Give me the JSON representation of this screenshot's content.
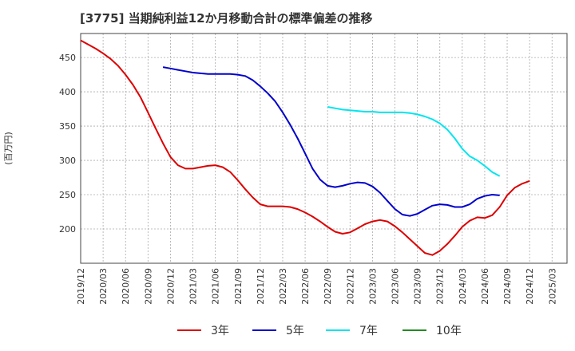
{
  "chart_data": {
    "type": "line",
    "title": "[3775]  当期純利益12か月移動合計の標準偏差の推移",
    "ylabel": "(百万円)",
    "xlabel": "",
    "ylim": [
      150,
      485
    ],
    "yticks": [
      200,
      250,
      300,
      350,
      400,
      450
    ],
    "x_tick_labels": [
      "2019/12",
      "2020/03",
      "2020/06",
      "2020/09",
      "2020/12",
      "2021/03",
      "2021/06",
      "2021/09",
      "2021/12",
      "2022/03",
      "2022/06",
      "2022/09",
      "2022/12",
      "2023/03",
      "2023/06",
      "2023/09",
      "2023/12",
      "2024/03",
      "2024/06",
      "2024/09",
      "2024/12",
      "2025/03"
    ],
    "grid": true,
    "legend_position": "bottom",
    "series": [
      {
        "name": "3年",
        "color": "#dd0000",
        "x": [
          0,
          1,
          2,
          3,
          4,
          5,
          6,
          7,
          8,
          9,
          10,
          11,
          12,
          13,
          14,
          15,
          16,
          17,
          18,
          19,
          20,
          21,
          22,
          23,
          24,
          25,
          26,
          27,
          28,
          29,
          30,
          31,
          32,
          33,
          34,
          35,
          36,
          37,
          38,
          39,
          40,
          41,
          42,
          43,
          44,
          45,
          46,
          47,
          48,
          49,
          50,
          51,
          52,
          53,
          54,
          55,
          56,
          57,
          58,
          59,
          60,
          61,
          62,
          63,
          64
        ],
        "values": [
          475,
          469,
          463,
          456,
          448,
          438,
          425,
          410,
          392,
          370,
          347,
          325,
          305,
          293,
          288,
          288,
          290,
          292,
          293,
          290,
          283,
          271,
          258,
          246,
          236,
          233,
          233,
          233,
          232,
          229,
          224,
          218,
          211,
          203,
          196,
          193,
          195,
          201,
          207,
          211,
          213,
          211,
          204,
          195,
          185,
          175,
          165,
          162,
          168,
          178,
          190,
          203,
          212,
          217,
          216,
          220,
          232,
          249,
          260,
          266,
          270,
          null,
          null,
          null,
          null
        ]
      },
      {
        "name": "5年",
        "color": "#0000cc",
        "x": [
          0,
          1,
          2,
          3,
          4,
          5,
          6,
          7,
          8,
          9,
          10,
          11,
          12,
          13,
          14,
          15,
          16,
          17,
          18,
          19,
          20,
          21,
          22,
          23,
          24,
          25,
          26,
          27,
          28,
          29,
          30,
          31,
          32,
          33,
          34,
          35,
          36,
          37,
          38,
          39,
          40,
          41,
          42,
          43,
          44,
          45,
          46,
          47,
          48,
          49,
          50,
          51,
          52,
          53,
          54,
          55,
          56,
          57,
          58,
          59,
          60,
          61,
          62,
          63,
          64
        ],
        "values": [
          null,
          null,
          null,
          null,
          null,
          null,
          null,
          null,
          null,
          null,
          null,
          436,
          434,
          432,
          430,
          428,
          427,
          426,
          426,
          426,
          426,
          425,
          423,
          417,
          408,
          398,
          386,
          370,
          352,
          332,
          310,
          288,
          272,
          263,
          261,
          263,
          266,
          268,
          267,
          262,
          253,
          241,
          229,
          221,
          219,
          222,
          228,
          234,
          236,
          235,
          232,
          232,
          236,
          244,
          248,
          250,
          249,
          null,
          null,
          null,
          null,
          null,
          null,
          null,
          null
        ]
      },
      {
        "name": "7年",
        "color": "#00e5ee",
        "x": [
          0,
          1,
          2,
          3,
          4,
          5,
          6,
          7,
          8,
          9,
          10,
          11,
          12,
          13,
          14,
          15,
          16,
          17,
          18,
          19,
          20,
          21,
          22,
          23,
          24,
          25,
          26,
          27,
          28,
          29,
          30,
          31,
          32,
          33,
          34,
          35,
          36,
          37,
          38,
          39,
          40,
          41,
          42,
          43,
          44,
          45,
          46,
          47,
          48,
          49,
          50,
          51,
          52,
          53,
          54,
          55,
          56,
          57,
          58,
          59,
          60,
          61,
          62,
          63,
          64
        ],
        "values": [
          null,
          null,
          null,
          null,
          null,
          null,
          null,
          null,
          null,
          null,
          null,
          null,
          null,
          null,
          null,
          null,
          null,
          null,
          null,
          null,
          null,
          null,
          null,
          null,
          null,
          null,
          null,
          null,
          null,
          null,
          null,
          null,
          null,
          378,
          376,
          374,
          373,
          372,
          371,
          371,
          370,
          370,
          370,
          370,
          369,
          367,
          364,
          360,
          354,
          345,
          332,
          317,
          306,
          300,
          292,
          283,
          277,
          null,
          null,
          null,
          null,
          null,
          null,
          null,
          null
        ]
      },
      {
        "name": "10年",
        "color": "#228b22",
        "x": [],
        "values": []
      }
    ]
  }
}
